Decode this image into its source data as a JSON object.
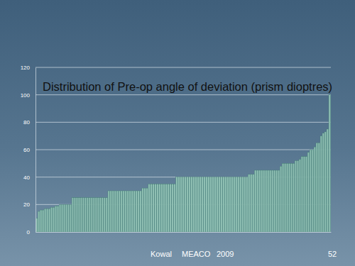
{
  "chart_data": {
    "type": "bar",
    "title": "Distribution of Pre-op angle of deviation (prism dioptres)",
    "categories": [
      null,
      null,
      null,
      null,
      null,
      null,
      null,
      null,
      null,
      null,
      null,
      null,
      null,
      null,
      null,
      null,
      null,
      null,
      null,
      null,
      null,
      null,
      null,
      null,
      null,
      null,
      null,
      null,
      null,
      null,
      null,
      null,
      null,
      null,
      null,
      null,
      null,
      null,
      null,
      null,
      null,
      null,
      null,
      null,
      null,
      null,
      null,
      null,
      null,
      null,
      null,
      null,
      null,
      null,
      null,
      null,
      null,
      null,
      null,
      null,
      null,
      null,
      null,
      null,
      null,
      null,
      null,
      null,
      null,
      null,
      null,
      null,
      null,
      null,
      null,
      null,
      null,
      null,
      null,
      null,
      null,
      null,
      null,
      null,
      null,
      null,
      null,
      null,
      null,
      null,
      null,
      null,
      null,
      null,
      null,
      null,
      null,
      null,
      null,
      null,
      null,
      null,
      null,
      null,
      null,
      null,
      null,
      null,
      null,
      null,
      null,
      null,
      null,
      null,
      null,
      null,
      null,
      null,
      null,
      null,
      null,
      null,
      null,
      null,
      null,
      null,
      null,
      null,
      null,
      null,
      null,
      null,
      null,
      null,
      null,
      null,
      null,
      null,
      null
    ],
    "values": [
      10,
      15,
      16,
      16,
      17,
      17,
      17,
      18,
      18,
      19,
      19,
      20,
      20,
      20,
      20,
      20,
      20,
      25,
      25,
      25,
      25,
      25,
      25,
      25,
      25,
      25,
      25,
      25,
      25,
      25,
      25,
      25,
      25,
      25,
      30,
      30,
      30,
      30,
      30,
      30,
      30,
      30,
      30,
      30,
      30,
      30,
      30,
      30,
      30,
      30,
      32,
      32,
      32,
      35,
      35,
      35,
      35,
      35,
      35,
      35,
      35,
      35,
      35,
      35,
      35,
      35,
      40,
      40,
      40,
      40,
      40,
      40,
      40,
      40,
      40,
      40,
      40,
      40,
      40,
      40,
      40,
      40,
      40,
      40,
      40,
      40,
      40,
      40,
      40,
      40,
      40,
      40,
      40,
      40,
      40,
      40,
      40,
      40,
      40,
      40,
      42,
      42,
      42,
      45,
      45,
      45,
      45,
      45,
      45,
      45,
      45,
      45,
      45,
      45,
      45,
      48,
      50,
      50,
      50,
      50,
      50,
      50,
      52,
      52,
      53,
      55,
      55,
      55,
      58,
      60,
      60,
      62,
      65,
      65,
      70,
      72,
      73,
      75,
      100
    ],
    "color": "#8fbfb3",
    "ylim": [
      0,
      120
    ],
    "yticks": [
      0,
      20,
      40,
      60,
      80,
      100,
      120
    ],
    "grid": true,
    "tick_labels": "y",
    "annotations": [
      "Kowal",
      "MEACO",
      "2009",
      "52"
    ]
  }
}
